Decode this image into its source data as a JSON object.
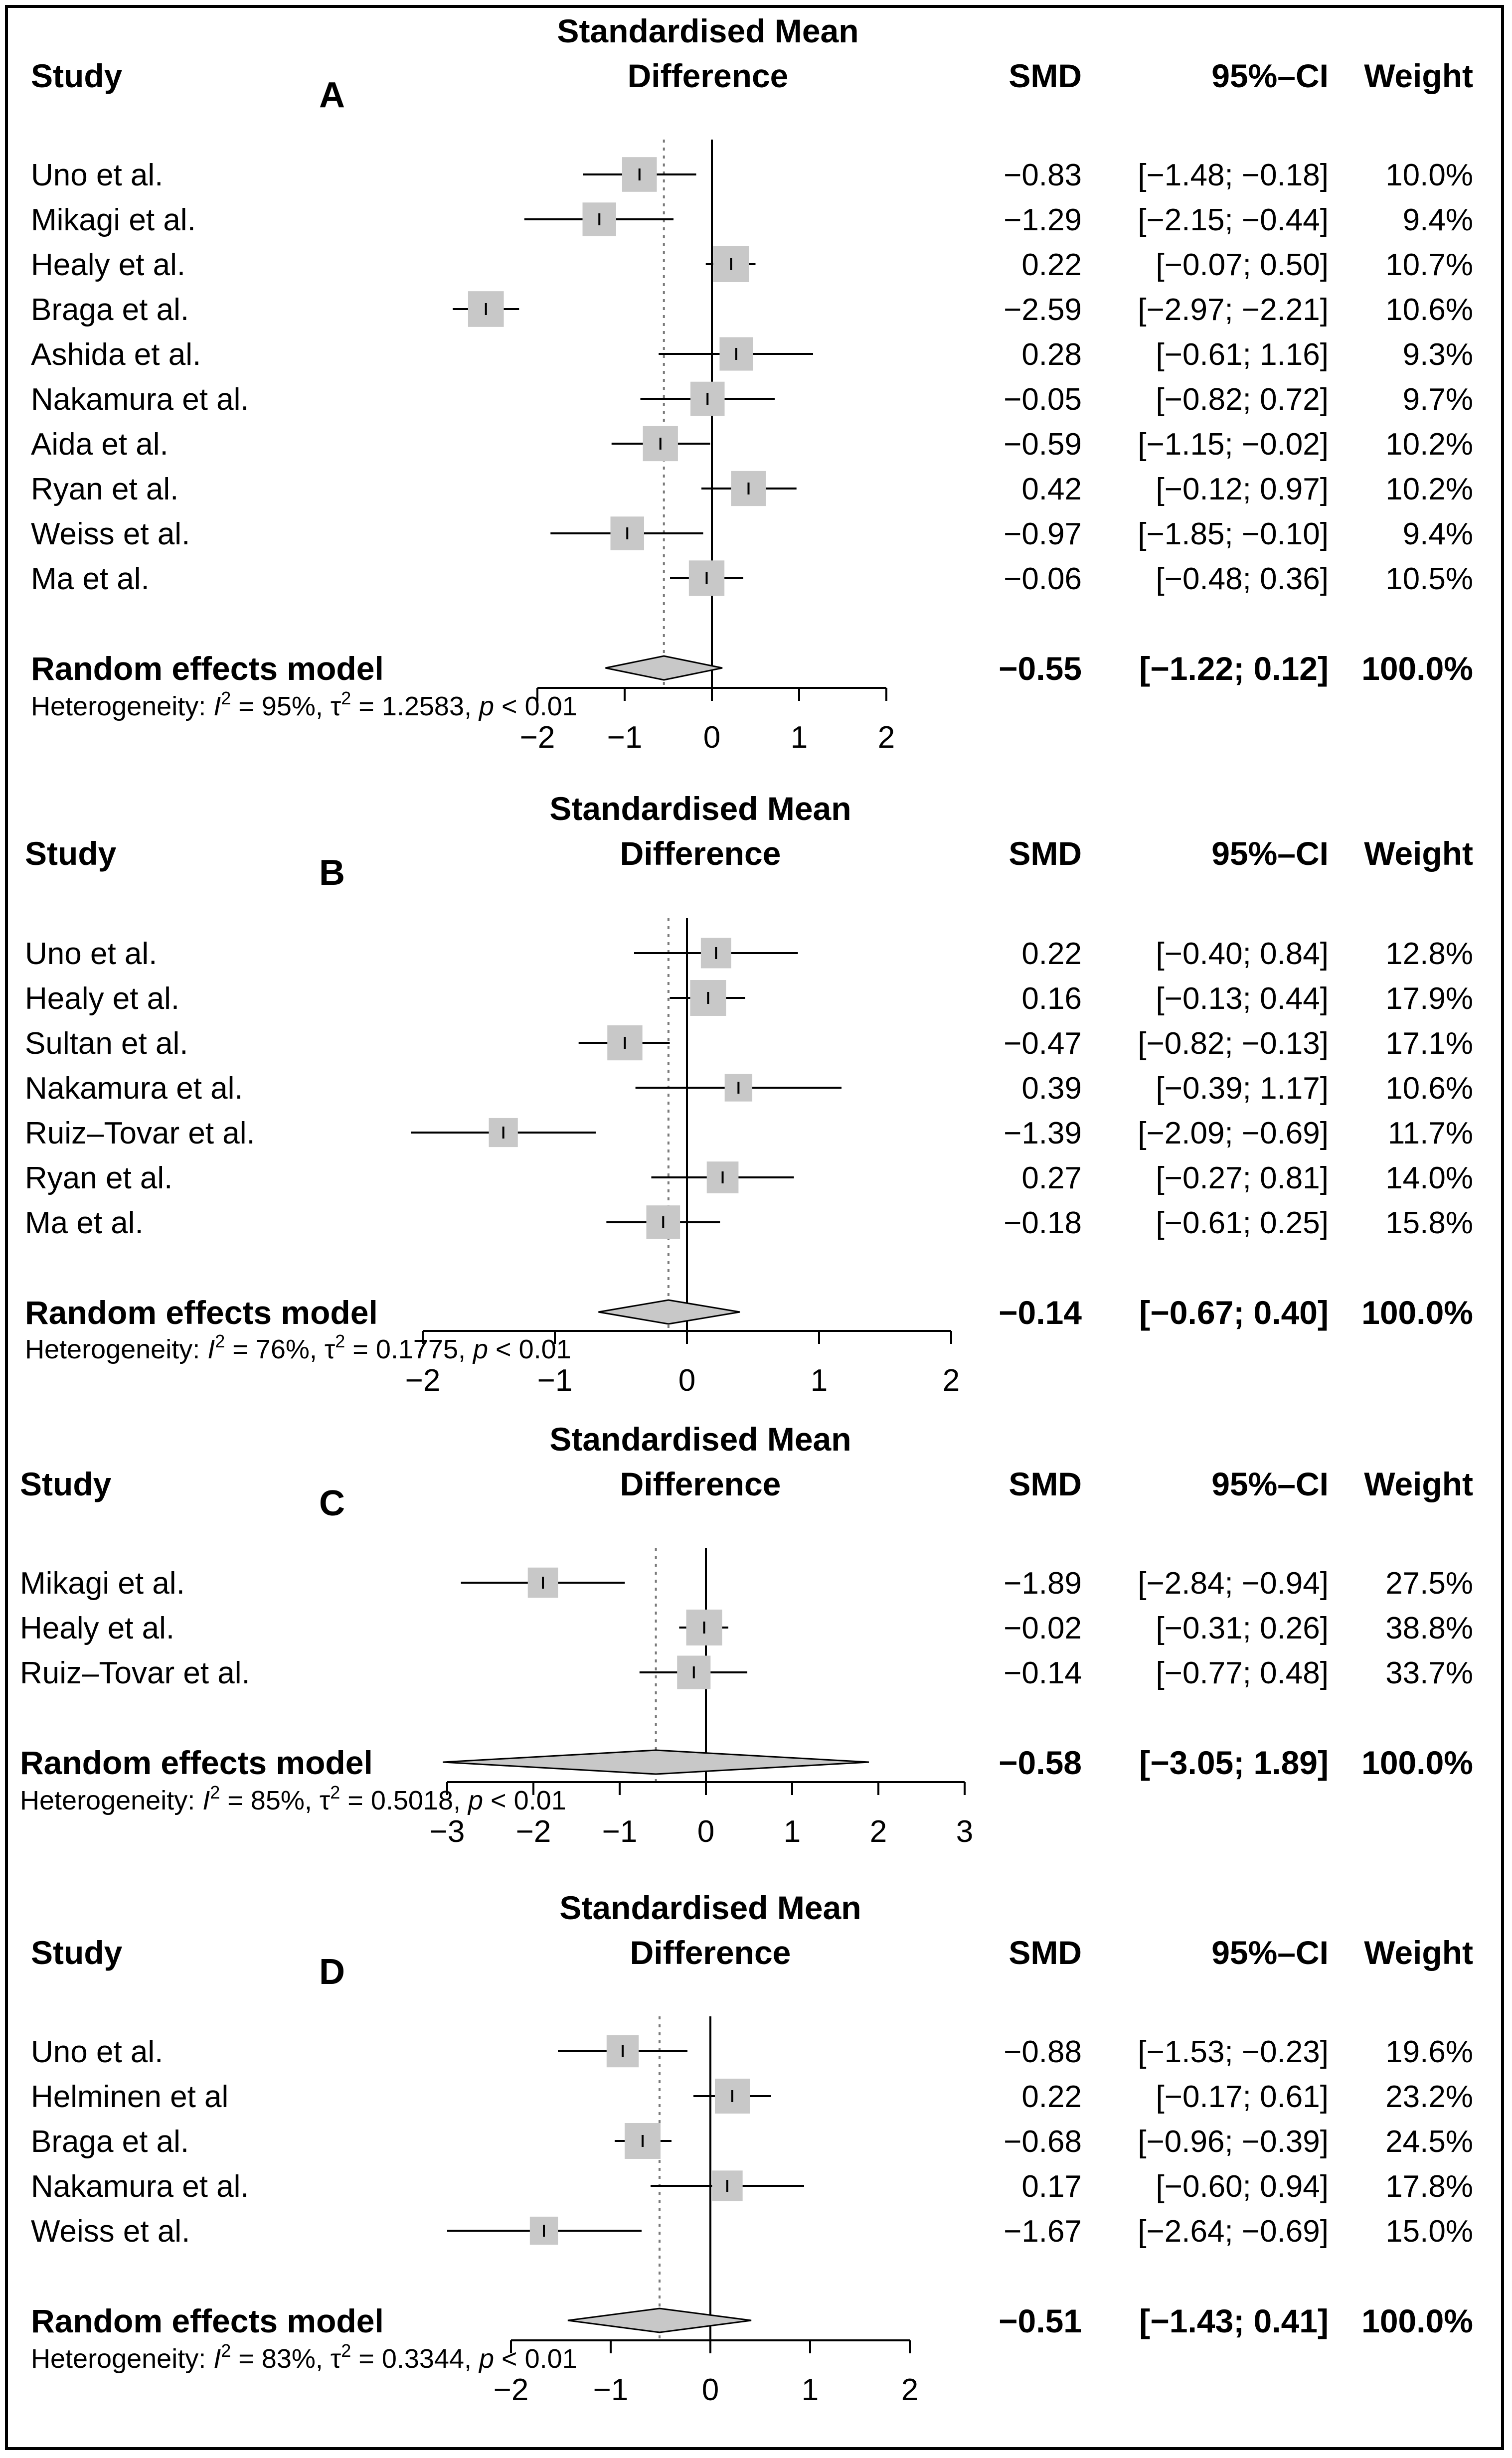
{
  "chart_data": [
    {
      "type": "forest",
      "panel": "A",
      "effect_header": [
        "Standardised Mean",
        "Difference"
      ],
      "col_study": "Study",
      "col_smd": "SMD",
      "col_ci": "95%–CI",
      "col_weight": "Weight",
      "xlim": [
        -2,
        2
      ],
      "ticks": [
        -2,
        -1,
        0,
        1,
        2
      ],
      "tick_labels": [
        "−2",
        "−1",
        "0",
        "1",
        "2"
      ],
      "studies": [
        {
          "name": "Uno et al.",
          "smd": -0.83,
          "lo": -1.48,
          "hi": -0.18,
          "weight": 10.0,
          "smd_text": "−0.83",
          "ci_text": "[−1.48; −0.18]",
          "weight_text": "10.0%"
        },
        {
          "name": "Mikagi et al.",
          "smd": -1.29,
          "lo": -2.15,
          "hi": -0.44,
          "weight": 9.4,
          "smd_text": "−1.29",
          "ci_text": "[−2.15; −0.44]",
          "weight_text": "9.4%"
        },
        {
          "name": "Healy et al.",
          "smd": 0.22,
          "lo": -0.07,
          "hi": 0.5,
          "weight": 10.7,
          "smd_text": "0.22",
          "ci_text": "[−0.07;  0.50]",
          "weight_text": "10.7%"
        },
        {
          "name": "Braga et al.",
          "smd": -2.59,
          "lo": -2.97,
          "hi": -2.21,
          "weight": 10.6,
          "smd_text": "−2.59",
          "ci_text": "[−2.97; −2.21]",
          "weight_text": "10.6%"
        },
        {
          "name": "Ashida et al.",
          "smd": 0.28,
          "lo": -0.61,
          "hi": 1.16,
          "weight": 9.3,
          "smd_text": "0.28",
          "ci_text": "[−0.61;  1.16]",
          "weight_text": "9.3%"
        },
        {
          "name": "Nakamura et al.",
          "smd": -0.05,
          "lo": -0.82,
          "hi": 0.72,
          "weight": 9.7,
          "smd_text": "−0.05",
          "ci_text": "[−0.82;  0.72]",
          "weight_text": "9.7%"
        },
        {
          "name": "Aida et al.",
          "smd": -0.59,
          "lo": -1.15,
          "hi": -0.02,
          "weight": 10.2,
          "smd_text": "−0.59",
          "ci_text": "[−1.15; −0.02]",
          "weight_text": "10.2%"
        },
        {
          "name": "Ryan et al.",
          "smd": 0.42,
          "lo": -0.12,
          "hi": 0.97,
          "weight": 10.2,
          "smd_text": "0.42",
          "ci_text": "[−0.12;  0.97]",
          "weight_text": "10.2%"
        },
        {
          "name": "Weiss et al.",
          "smd": -0.97,
          "lo": -1.85,
          "hi": -0.1,
          "weight": 9.4,
          "smd_text": "−0.97",
          "ci_text": "[−1.85; −0.10]",
          "weight_text": "9.4%"
        },
        {
          "name": "Ma et al.",
          "smd": -0.06,
          "lo": -0.48,
          "hi": 0.36,
          "weight": 10.5,
          "smd_text": "−0.06",
          "ci_text": "[−0.48;  0.36]",
          "weight_text": "10.5%"
        }
      ],
      "overall": {
        "label": "Random effects model",
        "smd": -0.55,
        "lo": -1.22,
        "hi": 0.12,
        "smd_text": "−0.55",
        "ci_text": "[−1.22;  0.12]",
        "weight_text": "100.0%"
      },
      "heterogeneity": {
        "prefix": "Heterogeneity: ",
        "I2_sym": "I",
        "I2_sup": "2",
        "I2_val": " = 95%, ",
        "tau_sym": "τ",
        "tau_sup": "2",
        "tau_val": " = 1.2583, ",
        "p_sym": "p",
        "p_val": " < 0.01"
      }
    },
    {
      "type": "forest",
      "panel": "B",
      "effect_header": [
        "Standardised Mean",
        "Difference"
      ],
      "col_study": "Study",
      "col_smd": "SMD",
      "col_ci": "95%–CI",
      "col_weight": "Weight",
      "xlim": [
        -2,
        2
      ],
      "ticks": [
        -2,
        -1,
        0,
        1,
        2
      ],
      "tick_labels": [
        "−2",
        "−1",
        "0",
        "1",
        "2"
      ],
      "studies": [
        {
          "name": "Uno et al.",
          "smd": 0.22,
          "lo": -0.4,
          "hi": 0.84,
          "weight": 12.8,
          "smd_text": "0.22",
          "ci_text": "[−0.40;  0.84]",
          "weight_text": "12.8%"
        },
        {
          "name": "Healy et al.",
          "smd": 0.16,
          "lo": -0.13,
          "hi": 0.44,
          "weight": 17.9,
          "smd_text": "0.16",
          "ci_text": "[−0.13;  0.44]",
          "weight_text": "17.9%"
        },
        {
          "name": "Sultan et al.",
          "smd": -0.47,
          "lo": -0.82,
          "hi": -0.13,
          "weight": 17.1,
          "smd_text": "−0.47",
          "ci_text": "[−0.82; −0.13]",
          "weight_text": "17.1%"
        },
        {
          "name": "Nakamura et al.",
          "smd": 0.39,
          "lo": -0.39,
          "hi": 1.17,
          "weight": 10.6,
          "smd_text": "0.39",
          "ci_text": "[−0.39;  1.17]",
          "weight_text": "10.6%"
        },
        {
          "name": "Ruiz–Tovar et al.",
          "smd": -1.39,
          "lo": -2.09,
          "hi": -0.69,
          "weight": 11.7,
          "smd_text": "−1.39",
          "ci_text": "[−2.09; −0.69]",
          "weight_text": "11.7%"
        },
        {
          "name": "Ryan et al.",
          "smd": 0.27,
          "lo": -0.27,
          "hi": 0.81,
          "weight": 14.0,
          "smd_text": "0.27",
          "ci_text": "[−0.27;  0.81]",
          "weight_text": "14.0%"
        },
        {
          "name": "Ma et al.",
          "smd": -0.18,
          "lo": -0.61,
          "hi": 0.25,
          "weight": 15.8,
          "smd_text": "−0.18",
          "ci_text": "[−0.61;  0.25]",
          "weight_text": "15.8%"
        }
      ],
      "overall": {
        "label": "Random effects model",
        "smd": -0.14,
        "lo": -0.67,
        "hi": 0.4,
        "smd_text": "−0.14",
        "ci_text": "[−0.67;  0.40]",
        "weight_text": "100.0%"
      },
      "heterogeneity": {
        "prefix": "Heterogeneity: ",
        "I2_sym": "I",
        "I2_sup": "2",
        "I2_val": " = 76%, ",
        "tau_sym": "τ",
        "tau_sup": "2",
        "tau_val": " = 0.1775, ",
        "p_sym": "p",
        "p_val": " < 0.01"
      }
    },
    {
      "type": "forest",
      "panel": "C",
      "effect_header": [
        "Standardised Mean",
        "Difference"
      ],
      "col_study": "Study",
      "col_smd": "SMD",
      "col_ci": "95%–CI",
      "col_weight": "Weight",
      "xlim": [
        -3,
        3
      ],
      "ticks": [
        -3,
        -2,
        -1,
        0,
        1,
        2,
        3
      ],
      "tick_labels": [
        "−3",
        "−2",
        "−1",
        "0",
        "1",
        "2",
        "3"
      ],
      "studies": [
        {
          "name": "Mikagi et al.",
          "smd": -1.89,
          "lo": -2.84,
          "hi": -0.94,
          "weight": 27.5,
          "smd_text": "−1.89",
          "ci_text": "[−2.84; −0.94]",
          "weight_text": "27.5%"
        },
        {
          "name": "Healy et al.",
          "smd": -0.02,
          "lo": -0.31,
          "hi": 0.26,
          "weight": 38.8,
          "smd_text": "−0.02",
          "ci_text": "[−0.31;  0.26]",
          "weight_text": "38.8%"
        },
        {
          "name": "Ruiz–Tovar et al.",
          "smd": -0.14,
          "lo": -0.77,
          "hi": 0.48,
          "weight": 33.7,
          "smd_text": "−0.14",
          "ci_text": "[−0.77;  0.48]",
          "weight_text": "33.7%"
        }
      ],
      "overall": {
        "label": "Random effects model",
        "smd": -0.58,
        "lo": -3.05,
        "hi": 1.89,
        "smd_text": "−0.58",
        "ci_text": "[−3.05;  1.89]",
        "weight_text": "100.0%"
      },
      "heterogeneity": {
        "prefix": "Heterogeneity: ",
        "I2_sym": "I",
        "I2_sup": "2",
        "I2_val": " = 85%, ",
        "tau_sym": "τ",
        "tau_sup": "2",
        "tau_val": " = 0.5018, ",
        "p_sym": "p",
        "p_val": " < 0.01"
      }
    },
    {
      "type": "forest",
      "panel": "D",
      "effect_header": [
        "Standardised Mean",
        "Difference"
      ],
      "col_study": "Study",
      "col_smd": "SMD",
      "col_ci": "95%–CI",
      "col_weight": "Weight",
      "xlim": [
        -2,
        2
      ],
      "ticks": [
        -2,
        -1,
        0,
        1,
        2
      ],
      "tick_labels": [
        "−2",
        "−1",
        "0",
        "1",
        "2"
      ],
      "studies": [
        {
          "name": "Uno et al.",
          "smd": -0.88,
          "lo": -1.53,
          "hi": -0.23,
          "weight": 19.6,
          "smd_text": "−0.88",
          "ci_text": "[−1.53; −0.23]",
          "weight_text": "19.6%"
        },
        {
          "name": "Helminen et al",
          "smd": 0.22,
          "lo": -0.17,
          "hi": 0.61,
          "weight": 23.2,
          "smd_text": "0.22",
          "ci_text": "[−0.17;  0.61]",
          "weight_text": "23.2%"
        },
        {
          "name": "Braga et al.",
          "smd": -0.68,
          "lo": -0.96,
          "hi": -0.39,
          "weight": 24.5,
          "smd_text": "−0.68",
          "ci_text": "[−0.96; −0.39]",
          "weight_text": "24.5%"
        },
        {
          "name": "Nakamura et al.",
          "smd": 0.17,
          "lo": -0.6,
          "hi": 0.94,
          "weight": 17.8,
          "smd_text": "0.17",
          "ci_text": "[−0.60;  0.94]",
          "weight_text": "17.8%"
        },
        {
          "name": "Weiss et al.",
          "smd": -1.67,
          "lo": -2.64,
          "hi": -0.69,
          "weight": 15.0,
          "smd_text": "−1.67",
          "ci_text": "[−2.64; −0.69]",
          "weight_text": "15.0%"
        }
      ],
      "overall": {
        "label": "Random effects model",
        "smd": -0.51,
        "lo": -1.43,
        "hi": 0.41,
        "smd_text": "−0.51",
        "ci_text": "[−1.43;  0.41]",
        "weight_text": "100.0%"
      },
      "heterogeneity": {
        "prefix": "Heterogeneity: ",
        "I2_sym": "I",
        "I2_sup": "2",
        "I2_val": " = 83%, ",
        "tau_sym": "τ",
        "tau_sup": "2",
        "tau_val": " = 0.3344, ",
        "p_sym": "p",
        "p_val": " < 0.01"
      }
    }
  ],
  "colors": {
    "square": "#c8c8c8",
    "diamond": "#c8c8c8",
    "line": "#000000",
    "ref_line": "#7a7a7a"
  }
}
